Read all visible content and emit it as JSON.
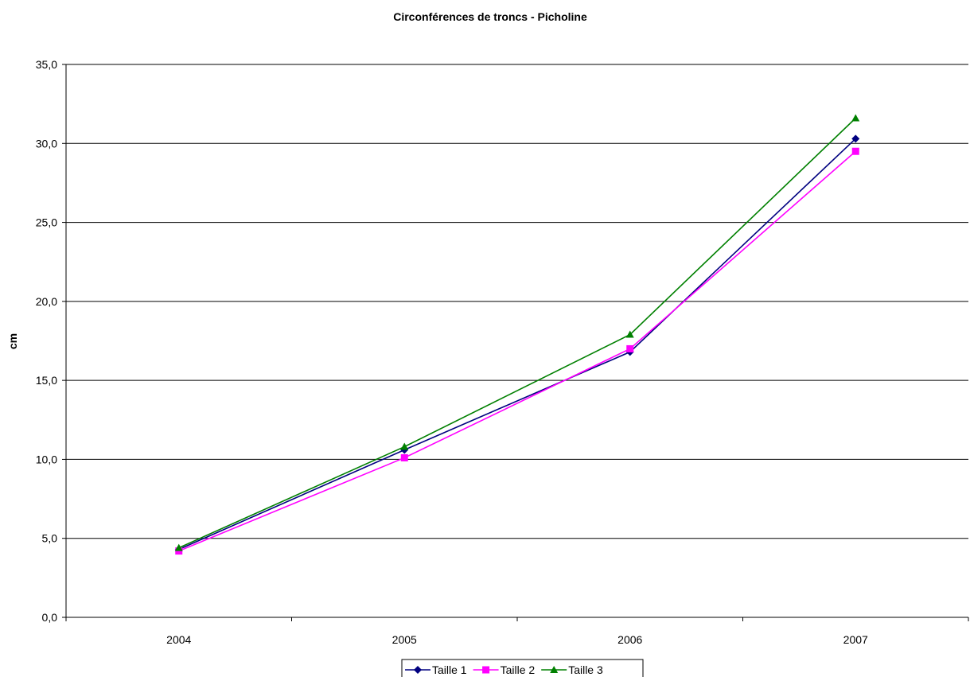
{
  "chart_data": {
    "type": "line",
    "title": "Circonférences de troncs - Picholine",
    "xlabel": "",
    "ylabel": "cm",
    "categories": [
      "2004",
      "2005",
      "2006",
      "2007"
    ],
    "ylim": [
      0,
      35
    ],
    "yticks": [
      "0,0",
      "5,0",
      "10,0",
      "15,0",
      "20,0",
      "25,0",
      "30,0",
      "35,0"
    ],
    "grid": "horizontal",
    "legend_position": "bottom",
    "series": [
      {
        "name": "Taille 1",
        "color": "#000080",
        "marker": "diamond",
        "values": [
          4.3,
          10.6,
          16.8,
          30.3
        ]
      },
      {
        "name": "Taille 2",
        "color": "#ff00ff",
        "marker": "square",
        "values": [
          4.2,
          10.1,
          17.0,
          29.5
        ]
      },
      {
        "name": "Taille 3",
        "color": "#008000",
        "marker": "triangle",
        "values": [
          4.4,
          10.8,
          17.9,
          31.6
        ]
      }
    ]
  }
}
